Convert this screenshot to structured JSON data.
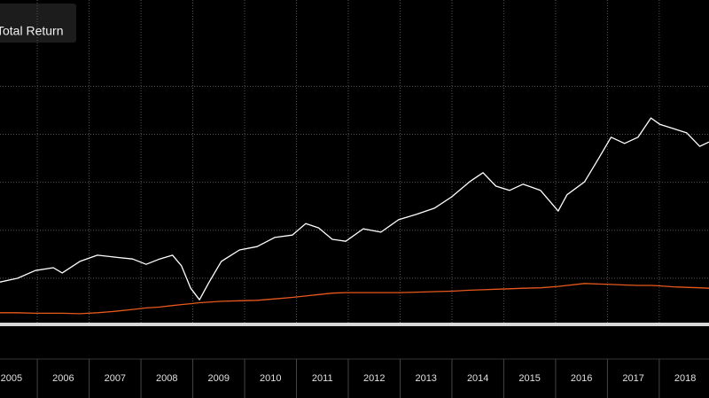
{
  "chart_data": {
    "type": "line",
    "legend": "Total Return",
    "x": [
      2005.28,
      2005.62,
      2005.96,
      2006.31,
      2006.48,
      2006.82,
      2007.16,
      2007.5,
      2007.84,
      2008.1,
      2008.36,
      2008.61,
      2008.78,
      2008.96,
      2009.13,
      2009.3,
      2009.55,
      2009.9,
      2010.24,
      2010.58,
      2010.92,
      2011.18,
      2011.43,
      2011.69,
      2011.95,
      2012.29,
      2012.63,
      2012.97,
      2013.31,
      2013.66,
      2014.0,
      2014.34,
      2014.6,
      2014.85,
      2015.11,
      2015.37,
      2015.71,
      2016.05,
      2016.22,
      2016.56,
      2016.82,
      2017.07,
      2017.33,
      2017.59,
      2017.84,
      2018.01,
      2018.27,
      2018.53,
      2018.78,
      2018.96
    ],
    "series": [
      {
        "name": "Total Return",
        "color": "#ffffff",
        "values": [
          92,
          100,
          116,
          122,
          111,
          135,
          148,
          144,
          140,
          129,
          140,
          148,
          126,
          79,
          55,
          89,
          135,
          159,
          166,
          185,
          190,
          214,
          205,
          181,
          177,
          203,
          196,
          222,
          233,
          246,
          270,
          301,
          320,
          292,
          283,
          296,
          283,
          240,
          274,
          301,
          348,
          394,
          381,
          394,
          434,
          421,
          412,
          403,
          375,
          384
        ]
      },
      {
        "color": "#e8581c",
        "values": [
          28,
          28,
          27,
          27,
          27,
          26,
          28,
          31,
          35,
          38,
          40,
          43,
          45,
          47,
          49,
          50,
          52,
          53,
          54,
          57,
          60,
          63,
          66,
          69,
          70,
          70,
          70,
          70,
          71,
          72,
          73,
          75,
          76,
          77,
          78,
          79,
          80,
          83,
          85,
          89,
          88,
          87,
          86,
          85,
          85,
          84,
          82,
          81,
          80,
          79
        ]
      }
    ],
    "xlim": [
      2005.28,
      2018.96
    ],
    "xticks": [
      {
        "value": 2005.5,
        "label": "2005"
      },
      {
        "value": 2006.5,
        "label": "2006"
      },
      {
        "value": 2007.5,
        "label": "2007"
      },
      {
        "value": 2008.5,
        "label": "2008"
      },
      {
        "value": 2009.5,
        "label": "2009"
      },
      {
        "value": 2010.5,
        "label": "2010"
      },
      {
        "value": 2011.5,
        "label": "2011"
      },
      {
        "value": 2012.5,
        "label": "2012"
      },
      {
        "value": 2013.5,
        "label": "2013"
      },
      {
        "value": 2014.5,
        "label": "2014"
      },
      {
        "value": 2015.5,
        "label": "2015"
      },
      {
        "value": 2016.5,
        "label": "2016"
      },
      {
        "value": 2017.5,
        "label": "2017"
      },
      {
        "value": 2018.5,
        "label": "2018"
      }
    ],
    "ylim": [
      0,
      680
    ],
    "yticks": [
      100,
      200,
      300,
      400,
      500
    ],
    "grid": true
  }
}
